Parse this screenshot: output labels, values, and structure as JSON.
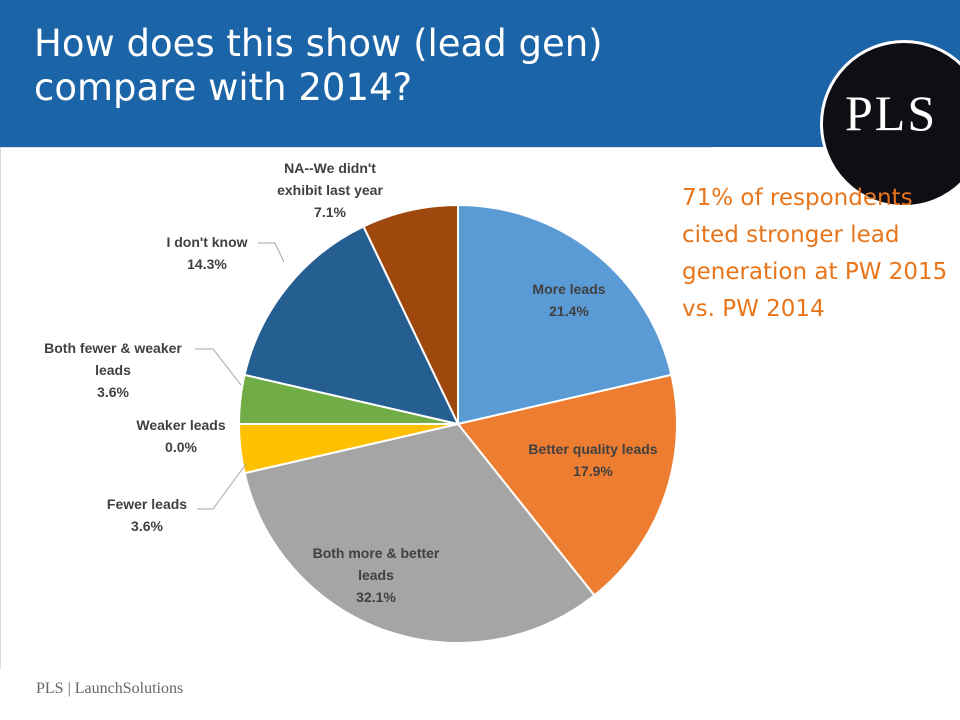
{
  "slide": {
    "title": "How does this show (lead gen)\ncompare with 2014?",
    "logo": "PLS",
    "callout": "71% of respondents cited stronger lead generation at PW 2015 vs. PW 2014",
    "footer": "PLS | LaunchSolutions"
  },
  "colors": {
    "header_bg": "#1a64a7",
    "callout": "#e8751a"
  },
  "chart_data": {
    "type": "pie",
    "title": "",
    "slices": [
      {
        "label": "More leads",
        "value": 21.4,
        "display": "21.4%",
        "color": "#5b9bd5"
      },
      {
        "label": "Better quality leads",
        "value": 17.9,
        "display": "17.9%",
        "color": "#ed7d31"
      },
      {
        "label": "Both more & better leads",
        "value": 32.1,
        "display": "32.1%",
        "color": "#a5a5a5"
      },
      {
        "label": "Fewer leads",
        "value": 3.6,
        "display": "3.6%",
        "color": "#ffc000"
      },
      {
        "label": "Weaker leads",
        "value": 0.0,
        "display": "0.0%",
        "color": "#4472c4"
      },
      {
        "label": "Both fewer & weaker leads",
        "value": 3.6,
        "display": "3.6%",
        "color": "#70ad47"
      },
      {
        "label": "I don't know",
        "value": 14.3,
        "display": "14.3%",
        "color": "#255e91"
      },
      {
        "label": "NA--We didn't exhibit last year",
        "value": 7.1,
        "display": "7.1%",
        "color": "#9e480e"
      }
    ]
  }
}
